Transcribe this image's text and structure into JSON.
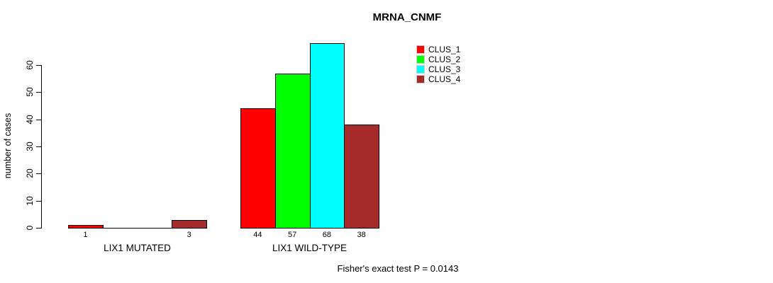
{
  "title": "MRNA_CNMF",
  "footnote": "Fisher's exact test P = 0.0143",
  "colors": {
    "clus_1": "#ff0000",
    "clus_2": "#00ff00",
    "clus_3": "#00ffff",
    "clus_4": "#a52a2a",
    "axis": "#000000",
    "background": "#ffffff"
  },
  "legend": {
    "position": "top-right",
    "entries": [
      {
        "label": "CLUS_1",
        "color": "#ff0000"
      },
      {
        "label": "CLUS_2",
        "color": "#00ff00"
      },
      {
        "label": "CLUS_3",
        "color": "#00ffff"
      },
      {
        "label": "CLUS_4",
        "color": "#a52a2a"
      }
    ]
  },
  "chart_data": {
    "type": "bar",
    "title": "MRNA_CNMF",
    "xlabel": "",
    "ylabel": "number of cases",
    "ylim": [
      0,
      60
    ],
    "yticks": [
      0,
      10,
      20,
      30,
      40,
      50,
      60
    ],
    "grid": false,
    "legend_position": "top-right",
    "categories": [
      "LIX1 MUTATED",
      "LIX1 WILD-TYPE"
    ],
    "series": [
      {
        "name": "CLUS_1",
        "color": "#ff0000",
        "values": [
          1,
          44
        ]
      },
      {
        "name": "CLUS_2",
        "color": "#00ff00",
        "values": [
          0,
          57
        ]
      },
      {
        "name": "CLUS_3",
        "color": "#00ffff",
        "values": [
          0,
          68
        ]
      },
      {
        "name": "CLUS_4",
        "color": "#a52a2a",
        "values": [
          3,
          38
        ]
      }
    ],
    "bar_value_labels": [
      [
        "1",
        "",
        "",
        "3"
      ],
      [
        "44",
        "57",
        "68",
        "38"
      ]
    ],
    "annotation": "Fisher's exact test P = 0.0143"
  }
}
